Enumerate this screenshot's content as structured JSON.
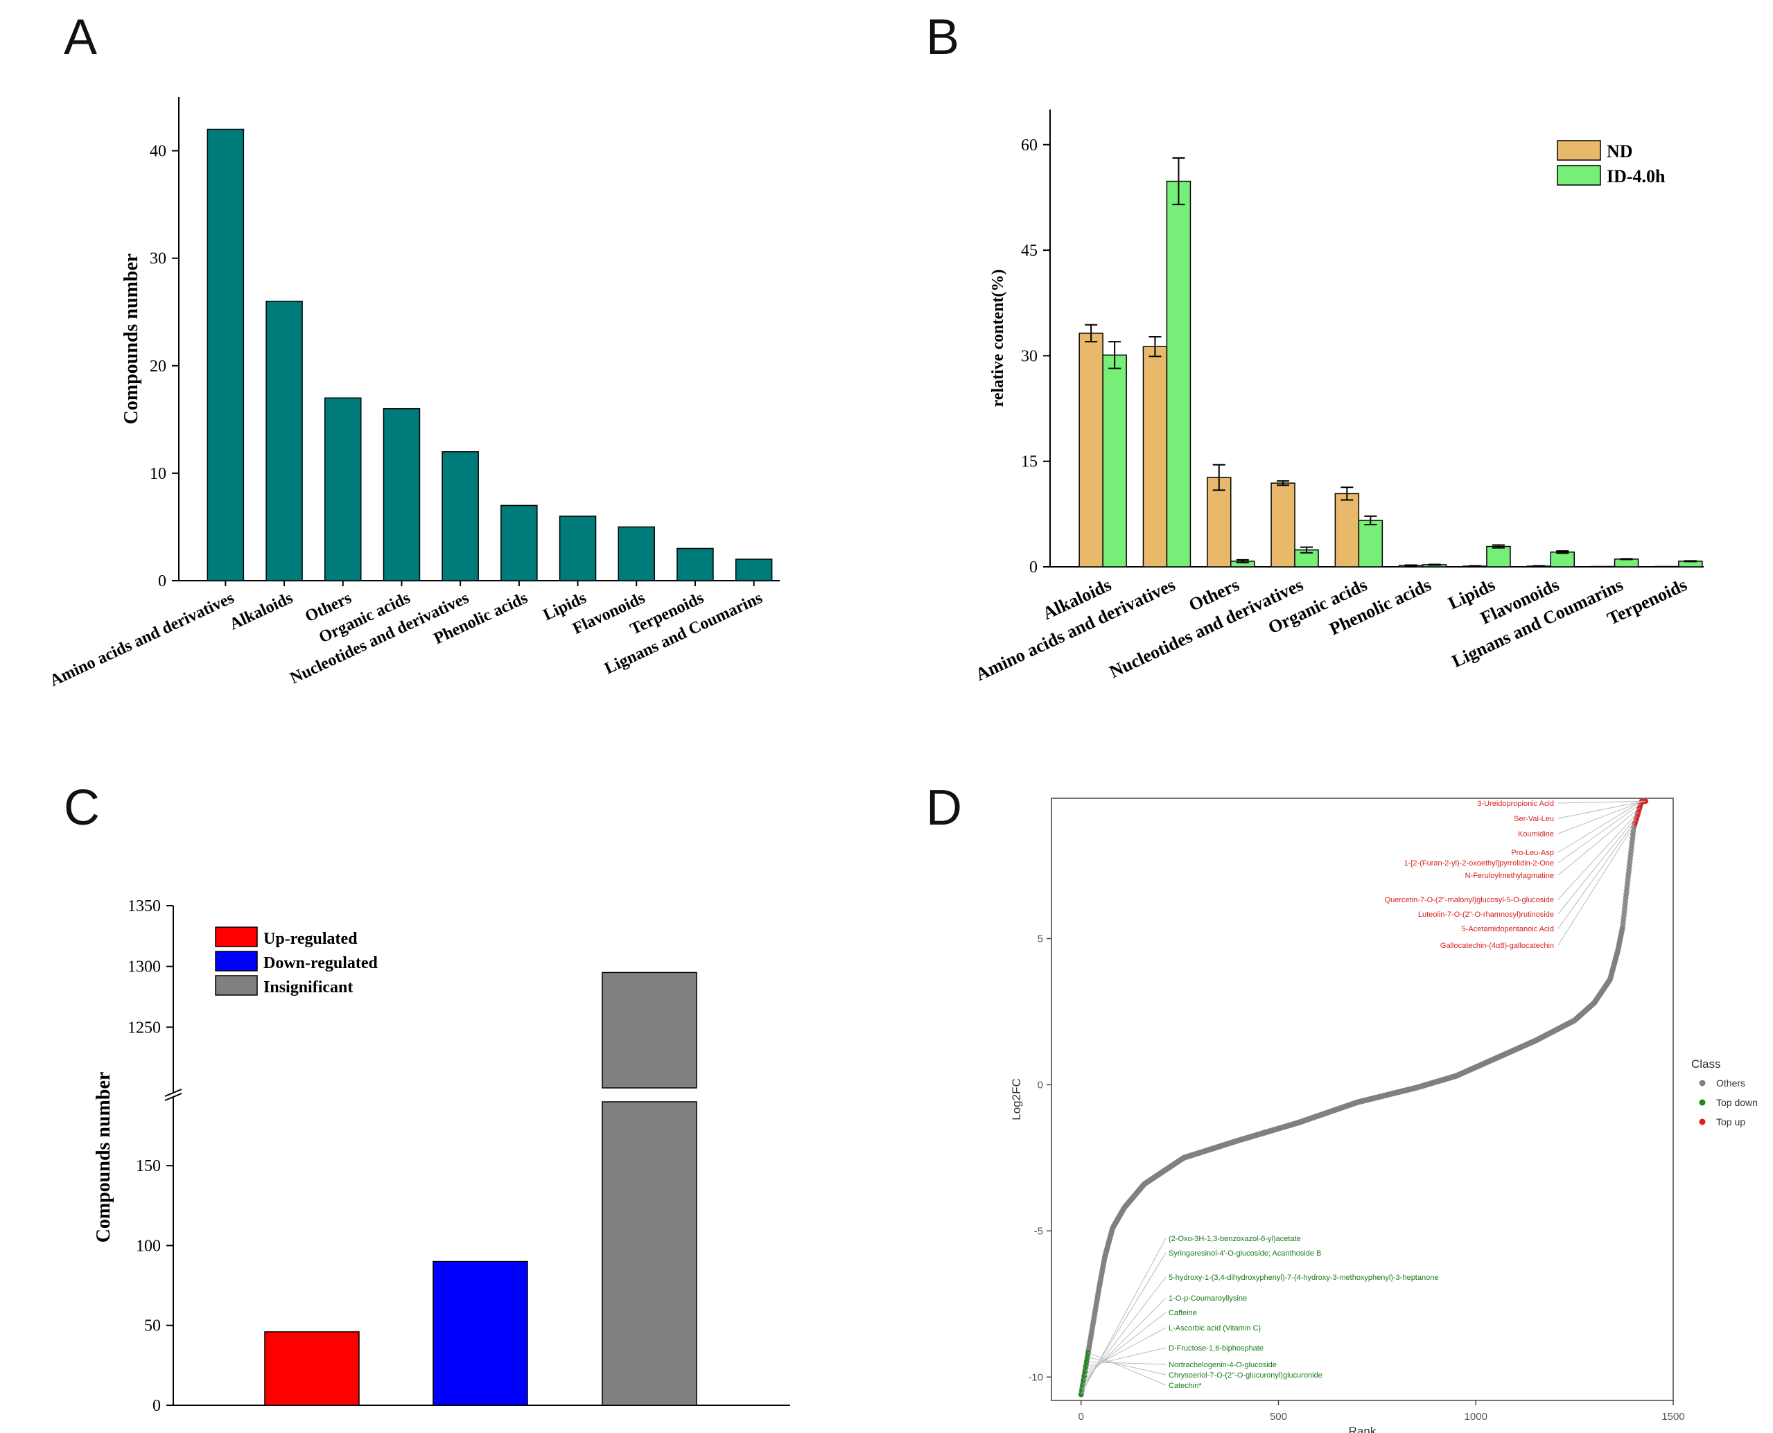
{
  "panels": {
    "A": "A",
    "B": "B",
    "C": "C",
    "D": "D"
  },
  "chart_data": [
    {
      "panel": "A",
      "type": "bar",
      "ylabel": "Compounds number",
      "ylim": [
        0,
        45
      ],
      "yticks": [
        0,
        10,
        20,
        30,
        40
      ],
      "categories": [
        "Amino acids and derivatives",
        "Alkaloids",
        "Others",
        "Organic acids",
        "Nucleotides and derivatives",
        "Phenolic acids",
        "Lipids",
        "Flavonoids",
        "Terpenoids",
        "Lignans and Coumarins"
      ],
      "values": [
        42,
        26,
        17,
        16,
        12,
        7,
        6,
        5,
        3,
        2
      ],
      "color": "#007b7b"
    },
    {
      "panel": "B",
      "type": "bar",
      "ylabel": "relative content(%)",
      "ylim": [
        0,
        65
      ],
      "yticks": [
        0,
        15,
        30,
        45,
        60
      ],
      "categories": [
        "Alkaloids",
        "Amino acids and derivatives",
        "Others",
        "Nucleotides and derivatives",
        "Organic acids",
        "Phenolic acids",
        "Lipids",
        "Flavonoids",
        "Lignans and Coumarins",
        "Terpenoids"
      ],
      "series": [
        {
          "name": "ND",
          "color": "#e8b96a",
          "values": [
            33.2,
            31.3,
            12.7,
            11.9,
            10.4,
            0.2,
            0.1,
            0.1,
            0.05,
            0.05
          ],
          "errors": [
            1.2,
            1.4,
            1.8,
            0.3,
            0.9,
            0.05,
            0.05,
            0.05,
            0,
            0
          ]
        },
        {
          "name": "ID-4.0h",
          "color": "#77ee77",
          "values": [
            30.1,
            54.8,
            0.8,
            2.4,
            6.6,
            0.3,
            2.9,
            2.1,
            1.1,
            0.8
          ],
          "errors": [
            1.9,
            3.3,
            0.2,
            0.4,
            0.6,
            0.05,
            0.2,
            0.15,
            0.05,
            0.05
          ]
        }
      ],
      "legend_position": "top-right"
    },
    {
      "panel": "C",
      "type": "bar",
      "ylabel": "Compounds number",
      "broken_axis": true,
      "ylim_lower": [
        0,
        190
      ],
      "ylim_upper": [
        1200,
        1350
      ],
      "yticks_lower": [
        0,
        50,
        100,
        150
      ],
      "yticks_upper": [
        1250,
        1300,
        1350
      ],
      "categories": [
        "Up-regulated",
        "Down-regulated",
        "Insignificant"
      ],
      "values": [
        46,
        90,
        1295
      ],
      "colors": [
        "#ff0000",
        "#0000ff",
        "#808080"
      ],
      "legend_position": "top-left"
    },
    {
      "panel": "D",
      "type": "scatter",
      "xlabel": "Rank",
      "ylabel": "Log2FC",
      "xlim": [
        -75,
        1500
      ],
      "ylim": [
        -10.8,
        9.8
      ],
      "xticks": [
        0,
        500,
        1000,
        1500
      ],
      "yticks": [
        -10,
        -5,
        0,
        5
      ],
      "n_points": 1431,
      "curve_anchors": [
        [
          0,
          -10.6
        ],
        [
          10,
          -9.8
        ],
        [
          25,
          -8.6
        ],
        [
          45,
          -7.0
        ],
        [
          60,
          -5.9
        ],
        [
          80,
          -4.9
        ],
        [
          110,
          -4.2
        ],
        [
          160,
          -3.4
        ],
        [
          260,
          -2.5
        ],
        [
          400,
          -1.9
        ],
        [
          550,
          -1.3
        ],
        [
          700,
          -0.6
        ],
        [
          850,
          -0.1
        ],
        [
          950,
          0.3
        ],
        [
          1050,
          0.9
        ],
        [
          1150,
          1.5
        ],
        [
          1250,
          2.2
        ],
        [
          1300,
          2.8
        ],
        [
          1340,
          3.6
        ],
        [
          1360,
          4.6
        ],
        [
          1372,
          5.4
        ],
        [
          1380,
          6.4
        ],
        [
          1390,
          7.6
        ],
        [
          1400,
          8.8
        ],
        [
          1420,
          9.7
        ],
        [
          1431,
          9.7
        ]
      ],
      "legend_title": "Class",
      "legend": [
        {
          "name": "Others",
          "color": "#808080"
        },
        {
          "name": "Top down",
          "color": "#1a8a1a"
        },
        {
          "name": "Top up",
          "color": "#e31a1c"
        }
      ],
      "top_up_labels": [
        "3-Ureidopropionic Acid",
        "Ser-Val-Leu",
        "Koumidine",
        "Pro-Leu-Asp",
        "1-[2-(Furan-2-yl)-2-oxoethyl]pyrrolidin-2-One",
        "N-Feruloylmethylagmatine",
        "Quercetin-7-O-(2''-malonyl)glucosyl-5-O-glucoside",
        "Luteolin-7-O-(2''-O-rhamnosyl)rutinoside",
        "5-Acetamidopentanoic Acid",
        "Gallocatechin-(4α8)-gallocatechin"
      ],
      "top_down_labels": [
        "(2-Oxo-3H-1,3-benzoxazol-6-yl)acetate",
        "Syringaresinol-4'-O-glucoside; Acanthoside B",
        "5-hydroxy-1-(3,4-dihydroxyphenyl)-7-(4-hydroxy-3-methoxyphenyl)-3-heptanone",
        "1-O-p-Coumaroyllysine",
        "Caffeine",
        "L-Ascorbic acid (Vitamin C)",
        "D-Fructose-1,6-biphosphate",
        "Nortrachelogenin-4-O-glucoside",
        "Chrysoeriol-7-O-(2''-O-glucuronyl)glucuronide",
        "Catechin*"
      ]
    }
  ]
}
